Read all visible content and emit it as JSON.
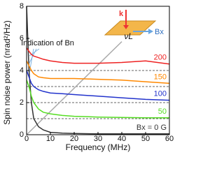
{
  "chart_data": {
    "type": "line",
    "xlabel": "Frequency (MHz)",
    "ylabel": "Spin noise power (nrad²/Hz)",
    "x": [
      0,
      1,
      2,
      3,
      5,
      7,
      10,
      15,
      20,
      30,
      40,
      50,
      60
    ],
    "series": [
      {
        "name": "Bx = 0 G",
        "color": "#333333",
        "values": [
          8,
          4,
          2,
          1.0,
          0.5,
          0.3,
          0.15,
          0.1,
          0.08,
          0.05,
          0.05,
          0.05,
          0.05
        ]
      },
      {
        "name": "50",
        "color": "#55dd22",
        "values": [
          3.4,
          3.0,
          2.4,
          2.0,
          1.6,
          1.4,
          1.3,
          1.2,
          1.15,
          1.1,
          1.08,
          1.05,
          1.05
        ]
      },
      {
        "name": "100",
        "color": "#2233cc",
        "values": [
          4.0,
          3.6,
          3.2,
          3.0,
          2.8,
          2.7,
          2.6,
          2.55,
          2.5,
          2.4,
          2.3,
          2.2,
          2.15
        ]
      },
      {
        "name": "150",
        "color": "#ff8800",
        "values": [
          4.6,
          4.3,
          4.0,
          3.8,
          3.6,
          3.55,
          3.5,
          3.5,
          3.5,
          3.45,
          3.4,
          3.3,
          3.2
        ]
      },
      {
        "name": "200",
        "color": "#ee2222",
        "values": [
          5.4,
          5.2,
          5.0,
          4.9,
          4.8,
          4.7,
          4.6,
          4.5,
          4.45,
          4.45,
          4.5,
          4.6,
          4.4
        ]
      }
    ],
    "baselines": [
      0,
      1,
      2,
      3,
      4
    ],
    "xlim": [
      0,
      60
    ],
    "xticks": [
      0,
      10,
      20,
      30,
      40,
      50,
      60
    ],
    "ylim": [
      0,
      8
    ],
    "yticks": [
      0,
      2,
      4,
      6,
      8
    ],
    "annotations": {
      "bn": "Indication of Bn",
      "larmor": "νL",
      "k": "k",
      "bx": "Bx"
    }
  }
}
